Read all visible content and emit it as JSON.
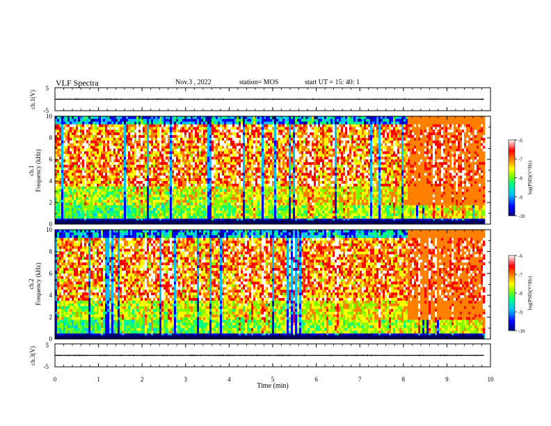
{
  "header": {
    "title": "VLF Spectra",
    "date": "Nov.3  , 2022",
    "station": "station= MOS",
    "start": "start  UT =   15: 40: 1"
  },
  "chart_data": [
    {
      "type": "line",
      "panel": "ch1-waveform",
      "ylabel": "ch.1(V)",
      "ylim": [
        -5,
        5
      ],
      "y_ticks": [
        "5",
        "-5"
      ],
      "xlim": [
        0,
        10
      ],
      "x": [
        0,
        2,
        4,
        6,
        8,
        9.85
      ],
      "y": [
        0,
        0,
        0,
        0,
        0,
        0
      ]
    },
    {
      "type": "heatmap",
      "panel": "ch1-spectrogram",
      "ylabel": "ch.1",
      "ylabel2": "Frequency (kHz)",
      "ylim": [
        0,
        10
      ],
      "y_ticks": [
        "0",
        "2",
        "4",
        "6",
        "8",
        "10"
      ],
      "xlim": [
        0,
        10
      ],
      "data_end_min": 9.85
    },
    {
      "type": "heatmap",
      "panel": "ch2-spectrogram",
      "ylabel": "ch.2",
      "ylabel2": "Frequency (kHz)",
      "ylim": [
        0,
        10
      ],
      "y_ticks": [
        "0",
        "2",
        "4",
        "6",
        "8",
        "10"
      ],
      "xlim": [
        0,
        10
      ],
      "data_end_min": 9.85
    },
    {
      "type": "line",
      "panel": "ch3-waveform",
      "ylabel": "ch.3(V)",
      "ylim": [
        -5,
        5
      ],
      "y_ticks": [
        "5",
        "-5"
      ],
      "xlim": [
        0,
        10
      ],
      "x": [
        0,
        2,
        4,
        6,
        8,
        9.85
      ],
      "y": [
        0,
        0,
        0,
        0,
        0,
        0
      ]
    }
  ],
  "x_axis": {
    "label": "Time  (min)",
    "ticks": [
      "0",
      "1",
      "2",
      "3",
      "4",
      "5",
      "6",
      "7",
      "8",
      "9",
      "10"
    ]
  },
  "colorbar": {
    "label": "log(PSD)(V²/Hz)",
    "ticks": [
      "-6",
      "-7",
      "-8",
      "-9",
      "-10"
    ],
    "range": [
      -10,
      -6
    ],
    "colors": [
      "#000080",
      "#0000ff",
      "#00c0ff",
      "#00ff80",
      "#80ff00",
      "#ffff00",
      "#ff8000",
      "#ff0000",
      "#ffffff"
    ]
  }
}
